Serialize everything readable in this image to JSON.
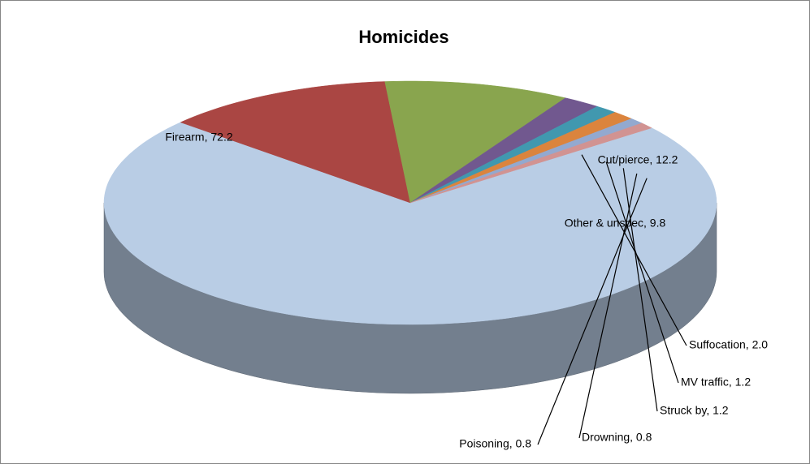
{
  "chart_data": {
    "type": "pie3d",
    "title": "Homicides",
    "values": [
      72.2,
      12.2,
      9.8,
      2.0,
      1.2,
      1.2,
      0.8,
      0.8
    ],
    "value_labels": [
      "Firearm, 72.2",
      "Cut/pierce, 12.2",
      "Other & unspec, 9.8",
      "Suffocation, 2.0",
      "MV traffic, 1.2",
      "Struck by, 1.2",
      "Drowning, 0.8",
      "Poisoning, 0.8"
    ],
    "colors": [
      "#b9cde5",
      "#aa4643",
      "#89a54e",
      "#71588f",
      "#4198af",
      "#db843d",
      "#93a9cf",
      "#d19392"
    ]
  }
}
